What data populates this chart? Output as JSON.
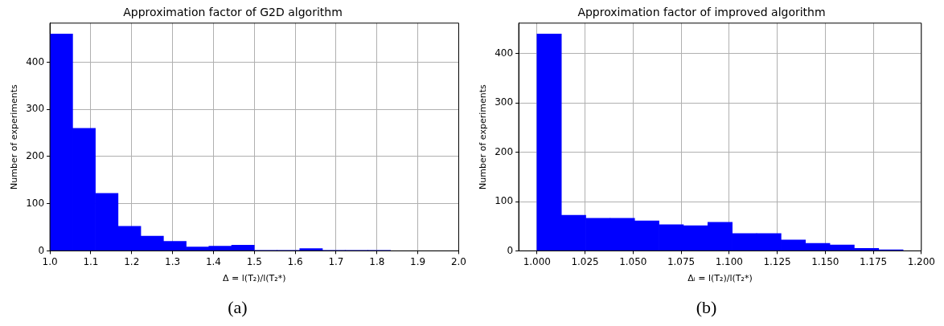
{
  "chart_data": [
    {
      "type": "histogram",
      "title": "Approximation factor of G2D algorithm",
      "xlabel": "Δ = l(T₂)/l(T₂*)",
      "ylabel": "Number of experiments",
      "annotations": [
        "(a)"
      ],
      "bins": [
        1.0,
        1.0556,
        1.1111,
        1.1667,
        1.2222,
        1.2778,
        1.3333,
        1.3889,
        1.4444,
        1.5,
        1.5556,
        1.6111,
        1.6667,
        1.7222,
        1.7778,
        1.8333
      ],
      "values": [
        460,
        260,
        122,
        52,
        31,
        20,
        8,
        10,
        12,
        1,
        1,
        5,
        1,
        1,
        1
      ],
      "color": "#0000ff",
      "xlim": [
        1.0,
        2.0
      ],
      "xticks": [
        {
          "value": 1.0,
          "label": "1.0"
        },
        1.1,
        1.2,
        1.3,
        1.4,
        {
          "value": 1.5,
          "label": "1.5"
        },
        1.6,
        1.7,
        1.8,
        1.9,
        {
          "value": 2.0,
          "label": "2.0"
        }
      ],
      "ylim": [
        0,
        483
      ],
      "yticks": [
        0,
        100,
        200,
        300,
        400
      ],
      "grid": true
    },
    {
      "type": "histogram",
      "title": "Approximation factor of improved algorithm",
      "xlabel": "Δᵢ = l(T₂)/l(T₂*)",
      "ylabel": "Number of experiments",
      "annotations": [
        "(b)"
      ],
      "bins": [
        1.0,
        1.0127,
        1.0254,
        1.0381,
        1.0508,
        1.0635,
        1.0762,
        1.0889,
        1.1016,
        1.1143,
        1.127,
        1.1397,
        1.1524,
        1.1651,
        1.1778,
        1.1905
      ],
      "values": [
        440,
        72,
        66,
        66,
        61,
        53,
        51,
        58,
        35,
        35,
        22,
        15,
        12,
        5,
        2
      ],
      "color": "#0000ff",
      "xlim": [
        0.9905,
        1.2
      ],
      "xticks": [
        {
          "value": 1.0,
          "label": "1.000"
        },
        1.025,
        {
          "value": 1.05,
          "label": "1.050"
        },
        1.075,
        {
          "value": 1.1,
          "label": "1.100"
        },
        1.125,
        {
          "value": 1.15,
          "label": "1.150"
        },
        1.175,
        {
          "value": 1.2,
          "label": "1.200"
        }
      ],
      "ylim": [
        0,
        462
      ],
      "yticks": [
        0,
        100,
        200,
        300,
        400
      ],
      "grid": true
    }
  ]
}
